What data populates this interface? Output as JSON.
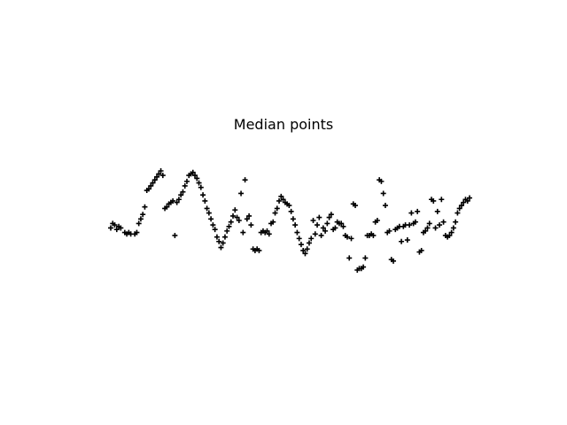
{
  "chart_data": {
    "type": "scatter",
    "title": "Median points",
    "xlabel": "",
    "ylabel": "",
    "axes_visible": false,
    "grid": false,
    "marker": "plus",
    "color": "#000000",
    "xlim": [
      0,
      240
    ],
    "ylim": [
      -4.2,
      5.2
    ],
    "points": [
      [
        0,
        0.2
      ],
      [
        1,
        0.5
      ],
      [
        2,
        0.4
      ],
      [
        3,
        0.1
      ],
      [
        4,
        0.3
      ],
      [
        5,
        0.2
      ],
      [
        7,
        -0.1
      ],
      [
        8,
        -0.2
      ],
      [
        9,
        -0.1
      ],
      [
        10,
        -0.2
      ],
      [
        12,
        -0.2
      ],
      [
        13,
        -0.1
      ],
      [
        14,
        0.5
      ],
      [
        15,
        0.8
      ],
      [
        16,
        1.1
      ],
      [
        17,
        1.6
      ],
      [
        18,
        2.7
      ],
      [
        19,
        2.8
      ],
      [
        20,
        3.0
      ],
      [
        21,
        3.2
      ],
      [
        22,
        3.4
      ],
      [
        23,
        3.6
      ],
      [
        24,
        3.8
      ],
      [
        25,
        4.0
      ],
      [
        26,
        3.7
      ],
      [
        27,
        1.5
      ],
      [
        28,
        1.6
      ],
      [
        29,
        1.8
      ],
      [
        30,
        1.9
      ],
      [
        31,
        2.0
      ],
      [
        32,
        -0.3
      ],
      [
        33,
        1.9
      ],
      [
        34,
        2.1
      ],
      [
        35,
        2.4
      ],
      [
        36,
        2.6
      ],
      [
        37,
        3.0
      ],
      [
        38,
        3.3
      ],
      [
        39,
        3.7
      ],
      [
        40,
        3.8
      ],
      [
        41,
        3.9
      ],
      [
        42,
        3.7
      ],
      [
        43,
        3.5
      ],
      [
        44,
        3.2
      ],
      [
        45,
        2.9
      ],
      [
        46,
        2.4
      ],
      [
        47,
        2.0
      ],
      [
        48,
        1.5
      ],
      [
        49,
        1.2
      ],
      [
        50,
        0.8
      ],
      [
        51,
        0.4
      ],
      [
        52,
        0.1
      ],
      [
        53,
        -0.4
      ],
      [
        54,
        -0.7
      ],
      [
        55,
        -1.1
      ],
      [
        56,
        -0.8
      ],
      [
        57,
        -0.4
      ],
      [
        58,
        0.0
      ],
      [
        59,
        0.3
      ],
      [
        60,
        0.6
      ],
      [
        61,
        1.0
      ],
      [
        62,
        1.4
      ],
      [
        63,
        0.9
      ],
      [
        64,
        0.7
      ],
      [
        65,
        2.5
      ],
      [
        66,
        -0.1
      ],
      [
        67,
        3.4
      ],
      [
        68,
        0.8
      ],
      [
        69,
        1.0
      ],
      [
        70,
        0.4
      ],
      [
        71,
        -1.2
      ],
      [
        72,
        -1.3
      ],
      [
        73,
        -1.2
      ],
      [
        74,
        -1.3
      ],
      [
        75,
        -0.1
      ],
      [
        76,
        0.0
      ],
      [
        77,
        -0.1
      ],
      [
        78,
        0.0
      ],
      [
        79,
        -0.2
      ],
      [
        80,
        0.5
      ],
      [
        81,
        0.6
      ],
      [
        82,
        1.2
      ],
      [
        83,
        1.5
      ],
      [
        84,
        2.0
      ],
      [
        85,
        2.3
      ],
      [
        86,
        2.1
      ],
      [
        87,
        1.9
      ],
      [
        88,
        1.8
      ],
      [
        89,
        1.7
      ],
      [
        90,
        1.3
      ],
      [
        91,
        0.8
      ],
      [
        92,
        0.4
      ],
      [
        93,
        -0.1
      ],
      [
        94,
        -0.5
      ],
      [
        95,
        -0.9
      ],
      [
        96,
        -1.3
      ],
      [
        97,
        -1.5
      ],
      [
        98,
        -1.2
      ],
      [
        99,
        -0.8
      ],
      [
        100,
        -0.5
      ],
      [
        101,
        0.7
      ],
      [
        102,
        -0.2
      ],
      [
        103,
        0.4
      ],
      [
        104,
        0.9
      ],
      [
        105,
        -0.3
      ],
      [
        106,
        0.2
      ],
      [
        107,
        0.0
      ],
      [
        108,
        0.5
      ],
      [
        109,
        0.9
      ],
      [
        110,
        1.1
      ],
      [
        111,
        0.1
      ],
      [
        112,
        0.2
      ],
      [
        113,
        0.6
      ],
      [
        114,
        0.5
      ],
      [
        115,
        0.5
      ],
      [
        116,
        0.3
      ],
      [
        117,
        -0.3
      ],
      [
        118,
        -0.4
      ],
      [
        119,
        -1.8
      ],
      [
        120,
        -0.5
      ],
      [
        121,
        1.8
      ],
      [
        122,
        1.7
      ],
      [
        123,
        -2.6
      ],
      [
        124,
        -2.5
      ],
      [
        125,
        -2.5
      ],
      [
        126,
        -2.4
      ],
      [
        127,
        -1.8
      ],
      [
        128,
        -0.3
      ],
      [
        129,
        -0.3
      ],
      [
        130,
        -0.2
      ],
      [
        131,
        -0.3
      ],
      [
        132,
        0.6
      ],
      [
        133,
        0.7
      ],
      [
        134,
        3.4
      ],
      [
        135,
        3.3
      ],
      [
        136,
        2.5
      ],
      [
        137,
        1.7
      ],
      [
        138,
        -0.1
      ],
      [
        139,
        0.0
      ],
      [
        140,
        -1.9
      ],
      [
        141,
        -2.0
      ],
      [
        142,
        0.1
      ],
      [
        143,
        0.2
      ],
      [
        144,
        0.3
      ],
      [
        145,
        -0.7
      ],
      [
        146,
        0.3
      ],
      [
        147,
        0.4
      ],
      [
        148,
        -0.6
      ],
      [
        149,
        0.4
      ],
      [
        150,
        1.2
      ],
      [
        151,
        0.5
      ],
      [
        152,
        0.6
      ],
      [
        153,
        1.3
      ],
      [
        154,
        -1.4
      ],
      [
        155,
        -1.3
      ],
      [
        156,
        -0.1
      ],
      [
        157,
        0.0
      ],
      [
        158,
        0.2
      ],
      [
        159,
        0.5
      ],
      [
        160,
        2.1
      ],
      [
        161,
        2.0
      ],
      [
        162,
        0.2
      ],
      [
        163,
        1.3
      ],
      [
        164,
        0.4
      ],
      [
        165,
        2.1
      ],
      [
        166,
        0.6
      ],
      [
        167,
        -0.3
      ],
      [
        168,
        -0.4
      ],
      [
        169,
        -0.3
      ],
      [
        170,
        -0.1
      ],
      [
        171,
        0.2
      ],
      [
        172,
        0.6
      ],
      [
        173,
        1.2
      ],
      [
        174,
        1.5
      ],
      [
        175,
        1.7
      ],
      [
        176,
        1.9
      ],
      [
        177,
        2.1
      ],
      [
        178,
        2.0
      ],
      [
        179,
        2.2
      ]
    ]
  }
}
